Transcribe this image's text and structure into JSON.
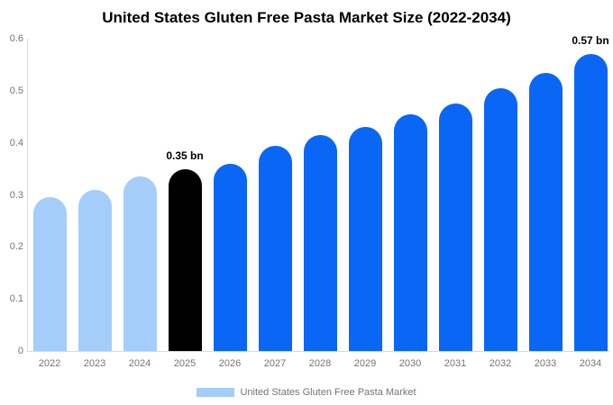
{
  "chart_data": {
    "type": "bar",
    "title": "United States Gluten Free Pasta Market Size (2022-2034)",
    "xlabel": "",
    "ylabel": "",
    "ylim": [
      0,
      0.6
    ],
    "y_tick_labels": [
      "0",
      "0.1",
      "0.2",
      "0.3",
      "0.4",
      "0.5",
      "0.6"
    ],
    "categories": [
      "2022",
      "2023",
      "2024",
      "2025",
      "2026",
      "2027",
      "2028",
      "2029",
      "2030",
      "2031",
      "2032",
      "2033",
      "2034"
    ],
    "values": [
      0.295,
      0.31,
      0.335,
      0.35,
      0.36,
      0.395,
      0.415,
      0.43,
      0.455,
      0.475,
      0.505,
      0.535,
      0.57
    ],
    "bar_colors": [
      "#a4cdfa",
      "#a4cdfa",
      "#a4cdfa",
      "#000000",
      "#0a66f5",
      "#0a66f5",
      "#0a66f5",
      "#0a66f5",
      "#0a66f5",
      "#0a66f5",
      "#0a66f5",
      "#0a66f5",
      "#0a66f5"
    ],
    "annotations": [
      {
        "category": "2025",
        "text": "0.35 bn"
      },
      {
        "category": "2034",
        "text": "0.57 bn"
      }
    ],
    "legend_position": "bottom",
    "grid": false
  },
  "legend": {
    "label": "United States Gluten Free Pasta Market",
    "swatch_color": "#a4cdfa"
  },
  "colors": {
    "light_blue": "#a4cdfa",
    "bright_blue": "#0a66f5",
    "highlight_black": "#000000",
    "axis_gray": "#d9d9d9",
    "text_gray": "#757575"
  }
}
